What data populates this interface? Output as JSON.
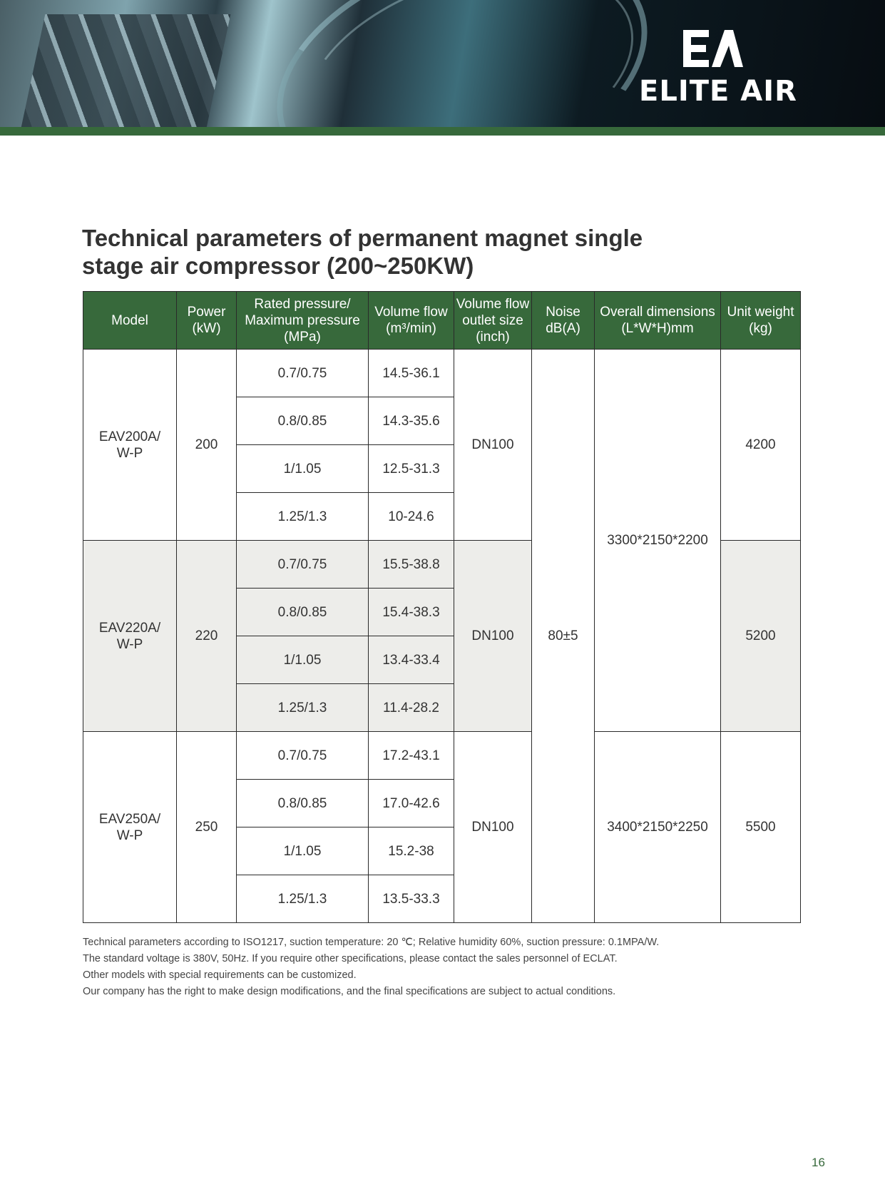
{
  "brand": {
    "logo_mark": "EA",
    "name": "ELITE AIR"
  },
  "title": {
    "line1": "Technical parameters of permanent magnet single",
    "line2": "stage air compressor (200~250KW)"
  },
  "table": {
    "headers": {
      "model": "Model",
      "power_line1": "Power",
      "power_line2": "(kW)",
      "pressure_line1": "Rated pressure/",
      "pressure_line2": "Maximum pressure",
      "pressure_line3": "(MPa)",
      "flow_line1": "Volume flow",
      "flow_line2": "(m³/min)",
      "outlet_line1": "Volume flow",
      "outlet_line2": "outlet size",
      "outlet_line3": "(inch)",
      "noise_line1": "Noise",
      "noise_line2": "dB(A)",
      "dims_line1": "Overall dimensions",
      "dims_line2": "(L*W*H)mm",
      "weight_line1": "Unit weight",
      "weight_line2": "(kg)"
    },
    "noise_shared": "80±5",
    "models": [
      {
        "model_line1": "EAV200A/",
        "model_line2": "W-P",
        "power": "200",
        "outlet": "DN100",
        "dimensions": "3300*2150*2200",
        "weight": "4200",
        "rows": [
          {
            "pressure": "0.7/0.75",
            "flow": "14.5-36.1"
          },
          {
            "pressure": "0.8/0.85",
            "flow": "14.3-35.6"
          },
          {
            "pressure": "1/1.05",
            "flow": "12.5-31.3"
          },
          {
            "pressure": "1.25/1.3",
            "flow": "10-24.6"
          }
        ]
      },
      {
        "model_line1": "EAV220A/",
        "model_line2": "W-P",
        "power": "220",
        "outlet": "DN100",
        "weight": "5200",
        "rows": [
          {
            "pressure": "0.7/0.75",
            "flow": "15.5-38.8"
          },
          {
            "pressure": "0.8/0.85",
            "flow": "15.4-38.3"
          },
          {
            "pressure": "1/1.05",
            "flow": "13.4-33.4"
          },
          {
            "pressure": "1.25/1.3",
            "flow": "11.4-28.2"
          }
        ]
      },
      {
        "model_line1": "EAV250A/",
        "model_line2": "W-P",
        "power": "250",
        "outlet": "DN100",
        "dimensions": "3400*2150*2250",
        "weight": "5500",
        "rows": [
          {
            "pressure": "0.7/0.75",
            "flow": "17.2-43.1"
          },
          {
            "pressure": "0.8/0.85",
            "flow": "17.0-42.6"
          },
          {
            "pressure": "1/1.05",
            "flow": "15.2-38"
          },
          {
            "pressure": "1.25/1.3",
            "flow": "13.5-33.3"
          }
        ]
      }
    ]
  },
  "notes": [
    "Technical parameters according to ISO1217, suction temperature: 20 ℃; Relative humidity 60%, suction pressure: 0.1MPA/W.",
    "The standard voltage is 380V, 50Hz. If you require other specifications, please contact the sales personnel of ECLAT.",
    "Other models with special requirements can be customized.",
    "Our company has the right to make design modifications, and the final specifications are subject to actual conditions."
  ],
  "page_number": "16",
  "colors": {
    "brand_green": "#37693b",
    "row_shade": "#ededea",
    "text": "#333333"
  }
}
